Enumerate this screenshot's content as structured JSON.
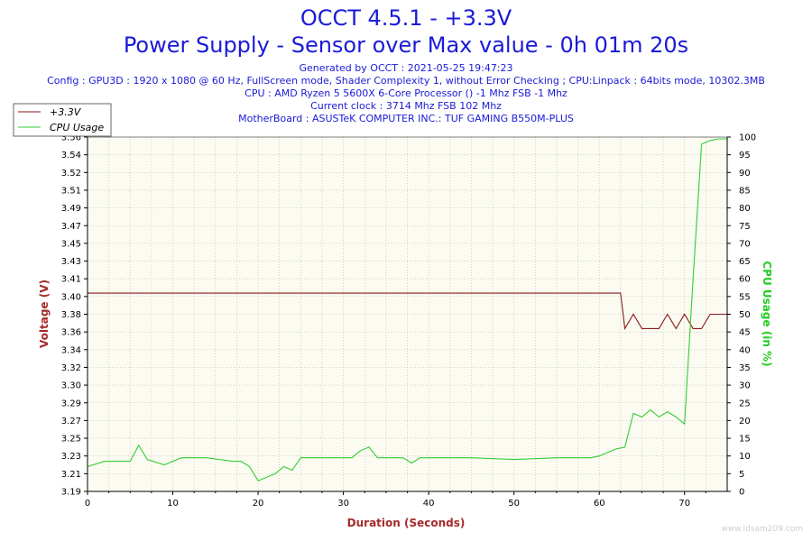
{
  "header": {
    "title_line1": "OCCT 4.5.1 - +3.3V",
    "title_line2": "Power Supply - Sensor over Max value - 0h 01m 20s",
    "generated": "Generated by OCCT : 2021-05-25 19:47:23",
    "config": "Config : GPU3D : 1920 x 1080 @ 60 Hz, FullScreen mode, Shader Complexity 1, without Error Checking ; CPU:Linpack : 64bits mode, 10302.3MB",
    "cpu": "CPU : AMD Ryzen 5 5600X 6-Core Processor () -1 Mhz FSB -1 Mhz",
    "clock": "Current clock : 3714 Mhz FSB 102 Mhz",
    "motherboard": "MotherBoard : ASUSTeK COMPUTER INC.: TUF GAMING B550M-PLUS"
  },
  "watermark": "www.idsam209.com",
  "colors": {
    "title": "#1a1ad8",
    "voltage": "#8b1a1a",
    "cpu": "#33cc33",
    "left_axis_label": "#a52a2a",
    "right_axis_label": "#22cc22",
    "x_axis_label": "#a52a2a",
    "grid": "#b8b8b8",
    "plot_bg": "#fbfbf1"
  },
  "chart_data": {
    "type": "line",
    "xlabel": "Duration (Seconds)",
    "ylabel": "Voltage (V)",
    "y2label": "CPU Usage (in %)",
    "xlim": [
      0,
      75
    ],
    "ylim": [
      3.19,
      3.56
    ],
    "y2lim": [
      0,
      100
    ],
    "grid": true,
    "legend_position": "top-left",
    "x_ticks": [
      "0",
      "10",
      "20",
      "30",
      "40",
      "50",
      "60",
      "70"
    ],
    "y_ticks": [
      "3.19",
      "3.21",
      "3.23",
      "3.25",
      "3.27",
      "3.29",
      "3.30",
      "3.32",
      "3.34",
      "3.36",
      "3.38",
      "3.40",
      "3.41",
      "3.43",
      "3.45",
      "3.47",
      "3.49",
      "3.51",
      "3.52",
      "3.54",
      "3.56"
    ],
    "y2_ticks": [
      "0",
      "5",
      "10",
      "15",
      "20",
      "25",
      "30",
      "35",
      "40",
      "45",
      "50",
      "55",
      "60",
      "65",
      "70",
      "75",
      "80",
      "85",
      "90",
      "95",
      "100"
    ],
    "series": [
      {
        "name": "+3.3V",
        "axis": "left",
        "x": [
          0,
          62.5,
          63,
          64,
          65,
          67,
          68,
          69,
          70,
          71,
          72,
          73,
          74,
          75
        ],
        "y": [
          3.397,
          3.397,
          3.36,
          3.375,
          3.36,
          3.36,
          3.375,
          3.36,
          3.375,
          3.36,
          3.36,
          3.375,
          3.375,
          3.375
        ]
      },
      {
        "name": "CPU Usage",
        "axis": "right",
        "x": [
          0,
          2,
          5,
          6,
          7,
          9,
          11,
          14,
          17,
          18,
          19,
          20,
          22,
          23,
          24,
          25,
          26,
          28,
          30,
          31,
          32,
          33,
          34,
          36,
          37,
          38,
          39,
          40,
          45,
          50,
          55,
          59,
          60,
          62,
          63,
          64,
          65,
          66,
          67,
          68,
          69,
          70,
          71,
          72,
          73,
          74,
          75
        ],
        "y": [
          7,
          8.5,
          8.5,
          13,
          9,
          7.5,
          9.5,
          9.5,
          8.5,
          8.5,
          7,
          3,
          5,
          7,
          6,
          9.5,
          9.5,
          9.5,
          9.5,
          9.5,
          11.5,
          12.5,
          9.5,
          9.5,
          9.5,
          8,
          9.5,
          9.5,
          9.5,
          9,
          9.5,
          9.5,
          10,
          12,
          12.5,
          22,
          21,
          23,
          21,
          22.5,
          21,
          19,
          60,
          98,
          99,
          99.5,
          99.5
        ]
      }
    ]
  }
}
